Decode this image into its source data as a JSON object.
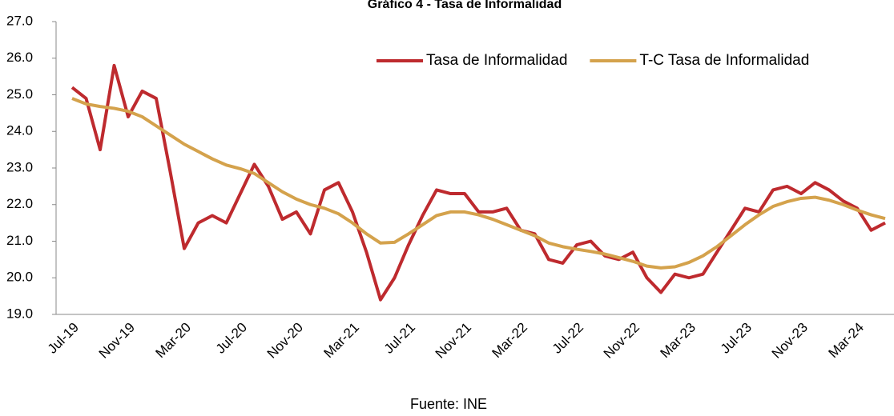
{
  "chart_data": {
    "type": "line",
    "title": "Gráfico 4 - Tasa de Informalidad",
    "source": "Fuente: INE",
    "categories": [
      "Jul-19",
      null,
      null,
      null,
      "Nov-19",
      null,
      null,
      null,
      "Mar-20",
      null,
      null,
      null,
      "Jul-20",
      null,
      null,
      null,
      "Nov-20",
      null,
      null,
      null,
      "Mar-21",
      null,
      null,
      null,
      "Jul-21",
      null,
      null,
      null,
      "Nov-21",
      null,
      null,
      null,
      "Mar-22",
      null,
      null,
      null,
      "Jul-22",
      null,
      null,
      null,
      "Nov-22",
      null,
      null,
      null,
      "Mar-23",
      null,
      null,
      null,
      "Jul-23",
      null,
      null,
      null,
      "Nov-23",
      null,
      null,
      null,
      "Mar-24",
      null,
      null
    ],
    "series": [
      {
        "name": "Tasa de Informalidad",
        "color": "#be2a2e",
        "values": [
          25.2,
          24.9,
          23.5,
          25.8,
          24.4,
          25.1,
          24.9,
          22.9,
          20.8,
          21.5,
          21.7,
          21.5,
          22.3,
          23.1,
          22.5,
          21.6,
          21.8,
          21.2,
          22.4,
          22.6,
          21.8,
          20.7,
          19.4,
          20.0,
          20.9,
          21.7,
          22.4,
          22.3,
          22.3,
          21.8,
          21.8,
          21.9,
          21.3,
          21.2,
          20.5,
          20.4,
          20.9,
          21.0,
          20.6,
          20.5,
          20.7,
          20.0,
          19.6,
          20.1,
          20.0,
          20.1,
          20.7,
          21.3,
          21.9,
          21.8,
          22.4,
          22.5,
          22.3,
          22.6,
          22.4,
          22.1,
          21.9,
          21.3,
          21.5
        ]
      },
      {
        "name": "T-C Tasa de Informalidad",
        "color": "#d4a24c",
        "values": [
          24.9,
          24.75,
          24.68,
          24.63,
          24.55,
          24.4,
          24.15,
          23.9,
          23.65,
          23.45,
          23.25,
          23.08,
          22.98,
          22.85,
          22.6,
          22.35,
          22.15,
          22.0,
          21.9,
          21.75,
          21.5,
          21.2,
          20.95,
          20.97,
          21.2,
          21.45,
          21.7,
          21.8,
          21.8,
          21.72,
          21.6,
          21.45,
          21.3,
          21.15,
          20.95,
          20.85,
          20.78,
          20.72,
          20.65,
          20.55,
          20.45,
          20.32,
          20.27,
          20.3,
          20.42,
          20.6,
          20.85,
          21.15,
          21.45,
          21.72,
          21.95,
          22.08,
          22.17,
          22.2,
          22.12,
          22.0,
          21.85,
          21.72,
          21.62
        ]
      }
    ],
    "ylim": [
      19,
      27
    ],
    "yticks": [
      {
        "value": 19,
        "label": "19.0"
      },
      {
        "value": 20,
        "label": "20.0"
      },
      {
        "value": 21,
        "label": "21.0"
      },
      {
        "value": 22,
        "label": "22.0"
      },
      {
        "value": 23,
        "label": "23.0"
      },
      {
        "value": 24,
        "label": "24.0"
      },
      {
        "value": 25,
        "label": "25.0"
      },
      {
        "value": 26,
        "label": "26.0"
      },
      {
        "value": 27,
        "label": "27.0"
      }
    ],
    "legend": "top-right"
  }
}
